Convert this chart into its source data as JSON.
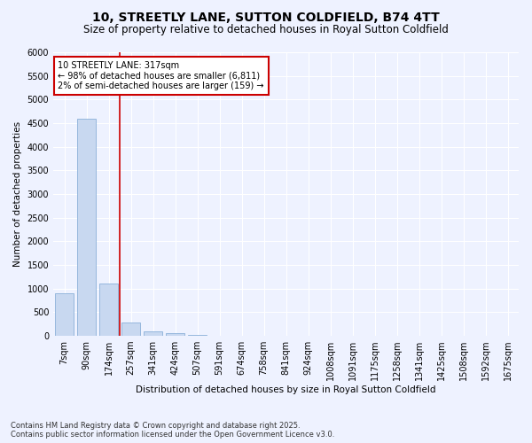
{
  "title": "10, STREETLY LANE, SUTTON COLDFIELD, B74 4TT",
  "subtitle": "Size of property relative to detached houses in Royal Sutton Coldfield",
  "xlabel": "Distribution of detached houses by size in Royal Sutton Coldfield",
  "ylabel": "Number of detached properties",
  "bar_color": "#c8d8f0",
  "bar_edge_color": "#8ab0d8",
  "categories": [
    "7sqm",
    "90sqm",
    "174sqm",
    "257sqm",
    "341sqm",
    "424sqm",
    "507sqm",
    "591sqm",
    "674sqm",
    "758sqm",
    "841sqm",
    "924sqm",
    "1008sqm",
    "1091sqm",
    "1175sqm",
    "1258sqm",
    "1341sqm",
    "1425sqm",
    "1508sqm",
    "1592sqm",
    "1675sqm"
  ],
  "values": [
    900,
    4600,
    1100,
    280,
    90,
    50,
    20,
    10,
    5,
    5,
    3,
    2,
    1,
    1,
    1,
    0,
    0,
    0,
    0,
    0,
    0
  ],
  "ylim": [
    0,
    6000
  ],
  "yticks": [
    0,
    500,
    1000,
    1500,
    2000,
    2500,
    3000,
    3500,
    4000,
    4500,
    5000,
    5500,
    6000
  ],
  "vline_x": 2.5,
  "vline_color": "#cc0000",
  "annotation_text": "10 STREETLY LANE: 317sqm\n← 98% of detached houses are smaller (6,811)\n2% of semi-detached houses are larger (159) →",
  "annotation_box_color": "#ffffff",
  "annotation_box_edge_color": "#cc0000",
  "footer_line1": "Contains HM Land Registry data © Crown copyright and database right 2025.",
  "footer_line2": "Contains public sector information licensed under the Open Government Licence v3.0.",
  "bg_color": "#eef2ff",
  "grid_color": "#ffffff",
  "title_fontsize": 10,
  "subtitle_fontsize": 8.5,
  "axis_label_fontsize": 7.5,
  "tick_fontsize": 7,
  "footer_fontsize": 6
}
